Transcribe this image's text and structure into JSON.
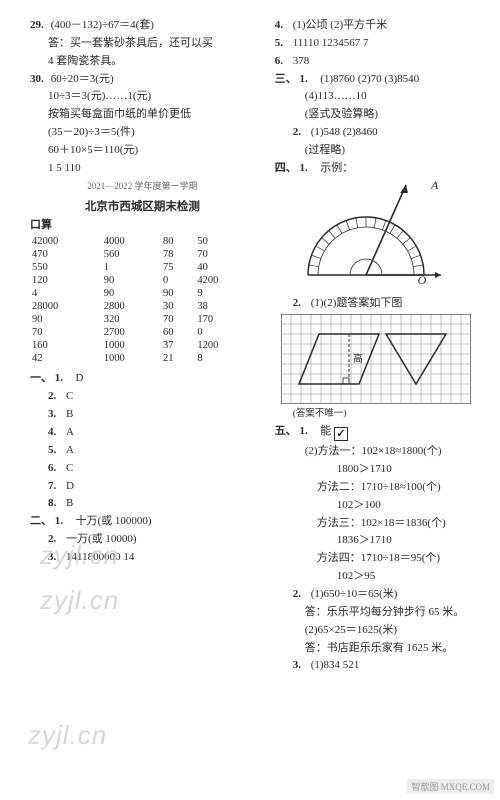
{
  "left": {
    "q29": {
      "num": "29.",
      "calc": "(400－132)÷67＝4(套)",
      "ans1": "答：买一套紫砂茶具后，还可以买",
      "ans2": "4 套陶瓷茶具。"
    },
    "q30": {
      "num": "30.",
      "l1": "60÷20＝3(元)",
      "l2": "10÷3＝3(元)……1(元)",
      "l3": "按箱买每盒面巾纸的单价更低",
      "l4": "(35－20)÷3＝5(件)",
      "l5": "60＋10×5＝110(元)",
      "l6": "1  5  110"
    },
    "exam_sub": "2021—2022 学年度第一学期",
    "exam_title": "北京市西城区期末检测",
    "kousuan_label": "口算",
    "kousuan_rows": [
      [
        "42000",
        "4000",
        "80",
        "50"
      ],
      [
        "470",
        "560",
        "78",
        "70"
      ],
      [
        "550",
        "1",
        "75",
        "40"
      ],
      [
        "120",
        "90",
        "0",
        "4200"
      ],
      [
        "4",
        "90",
        "90",
        "9"
      ],
      [
        "28000",
        "2800",
        "30",
        "38"
      ],
      [
        "90",
        "320",
        "70",
        "170"
      ],
      [
        "70",
        "2700",
        "60",
        "0"
      ],
      [
        "160",
        "1000",
        "37",
        "1200"
      ],
      [
        "42",
        "1000",
        "21",
        "8"
      ]
    ],
    "sec1": {
      "label": "一、",
      "i1": {
        "n": "1.",
        "v": "D"
      },
      "i2": {
        "n": "2.",
        "v": "C"
      },
      "i3": {
        "n": "3.",
        "v": "B"
      },
      "i4": {
        "n": "4.",
        "v": "A"
      },
      "i5": {
        "n": "5.",
        "v": "A"
      },
      "i6": {
        "n": "6.",
        "v": "C"
      },
      "i7": {
        "n": "7.",
        "v": "D"
      },
      "i8": {
        "n": "8.",
        "v": "B"
      }
    },
    "sec2": {
      "label": "二、",
      "i1": {
        "n": "1.",
        "v": "十万(或 100000)"
      },
      "i2": {
        "n": "2.",
        "v": "一万(或 10000)"
      },
      "i3": {
        "n": "3.",
        "v": "1411800000  14"
      }
    }
  },
  "right": {
    "i4": {
      "n": "4.",
      "v": "(1)公顷  (2)平方千米"
    },
    "i5": {
      "n": "5.",
      "v": "11110  1234567  7"
    },
    "i6": {
      "n": "6.",
      "v": "378"
    },
    "sec3": {
      "label": "三、",
      "i1a": {
        "n": "1.",
        "v": "(1)8760  (2)70  (3)8540"
      },
      "i1b": "(4)113……10",
      "i1c": "(竖式及验算略)",
      "i2a": {
        "n": "2.",
        "v": "(1)548  (2)8460"
      },
      "i2b": "(过程略)"
    },
    "sec4": {
      "label": "四、",
      "i1": {
        "n": "1.",
        "v": "示例："
      },
      "i2": {
        "n": "2.",
        "v": "(1)(2)题答案如下图"
      },
      "note": "(答案不唯一)",
      "gao": "高"
    },
    "sec5": {
      "label": "五、",
      "i1": {
        "n": "1.",
        "v": "能"
      },
      "m1a": "(2)方法一：102×18≈1800(个)",
      "m1b": "1800＞1710",
      "m2a": "方法二：1710÷18≈100(个)",
      "m2b": "102＞100",
      "m3a": "方法三：102×18＝1836(个)",
      "m3b": "1836＞1710",
      "m4a": "方法四：1710÷18＝95(个)",
      "m4b": "102＞95",
      "i2a": {
        "n": "2.",
        "v": "(1)650÷10＝65(米)"
      },
      "i2b": "答：乐乐平均每分钟步行 65 米。",
      "i2c": "(2)65×25＝1625(米)",
      "i2d": "答：书店距乐乐家有 1625 米。",
      "i3": {
        "n": "3.",
        "v": "(1)834  521"
      }
    }
  },
  "watermarks": {
    "wm1": "zyjl.cn",
    "wm2": "zyjl.cn",
    "wm3": "zyjl.cn"
  },
  "footer": "智歆图 MXQE.COM"
}
